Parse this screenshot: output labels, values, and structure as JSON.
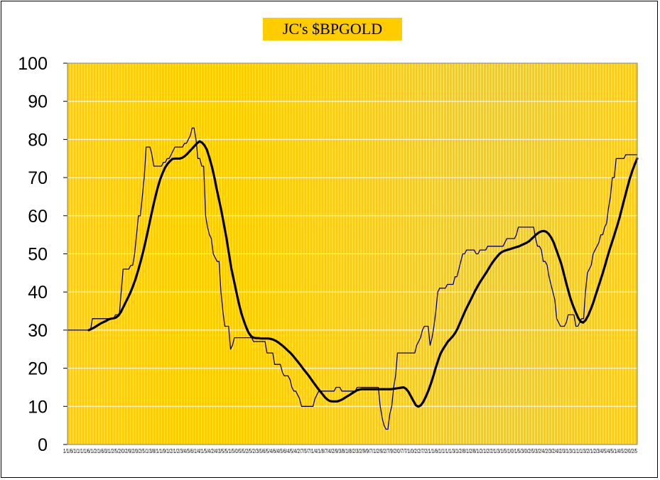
{
  "chart_data": {
    "type": "line",
    "title": "JC's $BPGOLD",
    "xlabel": "",
    "ylabel": "",
    "ylim": [
      0,
      100
    ],
    "yticks": [
      0,
      10,
      20,
      30,
      40,
      50,
      60,
      70,
      80,
      90,
      100
    ],
    "x_tick_labels_text": "1/1/6/1/1/1/1/6/1/2/1/6/3/1/2/5/2/0/2/9/2/0/2/5/1/3/8/1/1/9/1/2/1/2/3/4/5/6/1/4/1/5/4/2/4/3/5/5/1/5/0/5/5/2/5/2/3/5/6/5/4/6/4/5/6/4/5/4/2/7/5/7/1/4/1/8/7/4/2/9/3/8/1/8/2/3/2/9/9/7/1/2/9/2/7/9/2/0/7/7/1/0/2/2/7/2/1/1/6/1/1/1/1/3/1/2/8/1/2/8/1/2/1/2/2/1/3/1/5/1/0/1/5/3/0/2/5/3/2/4/2/3/2/4/2/3/1/3/1/1/1/3/2/1/2/3/4/5/4/5/1/4/5/2/0/2/5",
    "grid": true,
    "plot_background": "#ffcc00",
    "grid_color": "#ffffff",
    "series": [
      {
        "name": "",
        "color": "#000080",
        "style": "thin",
        "values": [
          30,
          30,
          30,
          30,
          30,
          30,
          30,
          30,
          30,
          30,
          30,
          30,
          30,
          33,
          33,
          33,
          33,
          33,
          33,
          33,
          33,
          33,
          33,
          33,
          33,
          34,
          34,
          34,
          40,
          46,
          46,
          46,
          46,
          47,
          47,
          50,
          55,
          60,
          60,
          65,
          70,
          78,
          78,
          78,
          76,
          73,
          73,
          73,
          73,
          73,
          74,
          74,
          75,
          75,
          76,
          77,
          78,
          78,
          78,
          78,
          78,
          79,
          79,
          80,
          81,
          83,
          83,
          80,
          75,
          75,
          73,
          73,
          60,
          57,
          55,
          54,
          50,
          49,
          48,
          48,
          40,
          35,
          31,
          31,
          31,
          25,
          26,
          28,
          28,
          28,
          28,
          28,
          28,
          28,
          28,
          28,
          28,
          27,
          27,
          27,
          27,
          27,
          27,
          27,
          24,
          24,
          24,
          24,
          21,
          21,
          21,
          21,
          19,
          18,
          18,
          18,
          17,
          15,
          14,
          14,
          13,
          12,
          10,
          10,
          10,
          10,
          10,
          10,
          10,
          12,
          13,
          14,
          14,
          14,
          14,
          14,
          14,
          14,
          14,
          14,
          15,
          15,
          15,
          14,
          14,
          14,
          14,
          14,
          14,
          14,
          14,
          15,
          15,
          15,
          15,
          15,
          15,
          15,
          15,
          15,
          15,
          15,
          15,
          10,
          7,
          5,
          4,
          4,
          8,
          10,
          15,
          18,
          24,
          24,
          24,
          24,
          24,
          24,
          24,
          24,
          24,
          24,
          26,
          27,
          28,
          30,
          31,
          31,
          31,
          26,
          28,
          31,
          35,
          40,
          41,
          41,
          41,
          41,
          42,
          42,
          42,
          42,
          44,
          44,
          46,
          48,
          50,
          50,
          51,
          51,
          51,
          51,
          51,
          50,
          50,
          51,
          51,
          51,
          51,
          52,
          52,
          52,
          52,
          52,
          52,
          52,
          52,
          52,
          53,
          54,
          54,
          54,
          54,
          54,
          55,
          57,
          57,
          57,
          57,
          57,
          57,
          57,
          57,
          57,
          54,
          52,
          52,
          51,
          48,
          48,
          47,
          44,
          42,
          40,
          38,
          33,
          32,
          31,
          31,
          31,
          32,
          34,
          34,
          34,
          34,
          31,
          31,
          32,
          33,
          33,
          40,
          45,
          46,
          47,
          50,
          51,
          52,
          53,
          55,
          55,
          57,
          58,
          62,
          65,
          70,
          70,
          75,
          75,
          75,
          75,
          75,
          76,
          76,
          76,
          76,
          76,
          76,
          76
        ]
      },
      {
        "name": "",
        "color": "#000000",
        "style": "thick",
        "values": [
          30,
          30.3,
          30.6,
          31,
          31.4,
          31.8,
          32.1,
          32.4,
          32.8,
          33,
          33.1,
          33.3,
          33.8,
          34.7,
          36,
          37.3,
          38.6,
          40,
          41.6,
          43.4,
          45.5,
          47.8,
          50.3,
          53,
          56,
          59,
          62,
          64.8,
          67.3,
          69.5,
          71.2,
          72.6,
          73.6,
          74.3,
          74.9,
          75,
          75,
          75,
          75.2,
          75.6,
          76.2,
          76.9,
          77.6,
          78.3,
          79,
          79.5,
          79.2,
          78.5,
          77.3,
          75.3,
          73,
          70.2,
          67,
          64,
          61,
          57.5,
          54,
          50,
          46,
          43,
          40,
          37,
          34.5,
          32.5,
          30.7,
          29.3,
          28.4,
          28,
          27.9,
          27.9,
          27.8,
          27.8,
          27.8,
          27.8,
          27.7,
          27.5,
          27.2,
          26.8,
          26.3,
          25.8,
          25.2,
          24.6,
          24,
          23.3,
          22.5,
          21.7,
          20.9,
          20,
          19.2,
          18.4,
          17.5,
          16.6,
          15.7,
          14.8,
          14,
          13.2,
          12.4,
          11.8,
          11.4,
          11.3,
          11.3,
          11.3,
          11.5,
          11.8,
          12.2,
          12.6,
          13,
          13.4,
          13.8,
          14.2,
          14.4,
          14.5,
          14.5,
          14.5,
          14.5,
          14.5,
          14.5,
          14.5,
          14.5,
          14.5,
          14.5,
          14.5,
          14.5,
          14.5,
          14.6,
          14.7,
          14.8,
          14.9,
          15,
          14.6,
          13.8,
          12.6,
          11.4,
          10.3,
          9.9,
          10.3,
          11.2,
          12.5,
          14,
          15.8,
          17.8,
          20,
          22,
          23.8,
          25,
          26,
          27,
          27.7,
          28.4,
          29.3,
          30.5,
          32,
          33.5,
          35,
          36.3,
          37.6,
          38.9,
          40.2,
          41.4,
          42.5,
          43.5,
          44.5,
          45.5,
          46.6,
          47.6,
          48.5,
          49.3,
          50,
          50.5,
          50.8,
          51,
          51.2,
          51.4,
          51.6,
          51.8,
          52,
          52.3,
          52.6,
          52.9,
          53.3,
          53.9,
          54.5,
          55.1,
          55.6,
          55.9,
          56,
          55.8,
          55.2,
          54.3,
          53,
          51.2,
          49.4,
          47.6,
          45.2,
          42.6,
          40.2,
          38,
          36.2,
          34.6,
          33.2,
          32.2,
          32,
          32.6,
          33.8,
          35.3,
          37,
          39,
          41,
          43,
          45,
          47.2,
          49.5,
          51.6,
          53.6,
          55.6,
          57.7,
          60,
          62.5,
          65,
          67.5,
          69.8,
          71.8,
          73.5,
          75
        ]
      }
    ]
  }
}
